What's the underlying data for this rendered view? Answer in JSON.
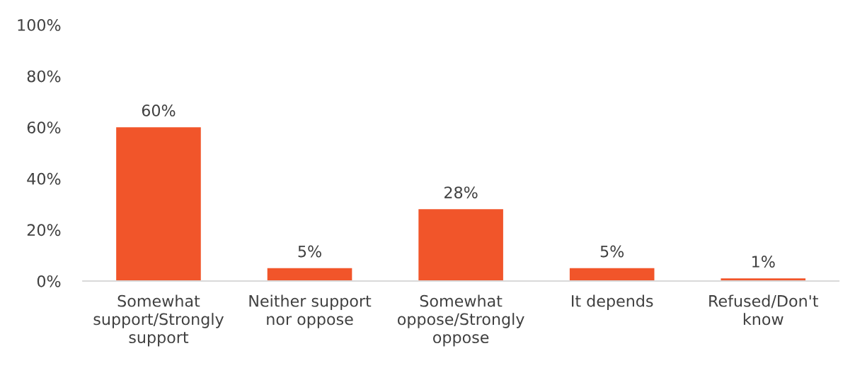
{
  "chart_data": {
    "type": "bar",
    "categories": [
      "Somewhat\nsupport/Strongly\nsupport",
      "Neither support\nnor oppose",
      "Somewhat\noppose/Strongly\noppose",
      "It depends",
      "Refused/Don't\nknow"
    ],
    "values": [
      60,
      5,
      28,
      5,
      1
    ],
    "color": "#f1552a",
    "value_labels": [
      "60%",
      "5%",
      "28%",
      "5%",
      "1%"
    ],
    "ylim": [
      0,
      100
    ],
    "yticks": [
      {
        "value": 0,
        "label": "0%"
      },
      {
        "value": 20,
        "label": "20%"
      },
      {
        "value": 40,
        "label": "40%"
      },
      {
        "value": 60,
        "label": "60%"
      },
      {
        "value": 80,
        "label": "80%"
      },
      {
        "value": 100,
        "label": "100%"
      }
    ],
    "grid": false,
    "legend": false
  }
}
